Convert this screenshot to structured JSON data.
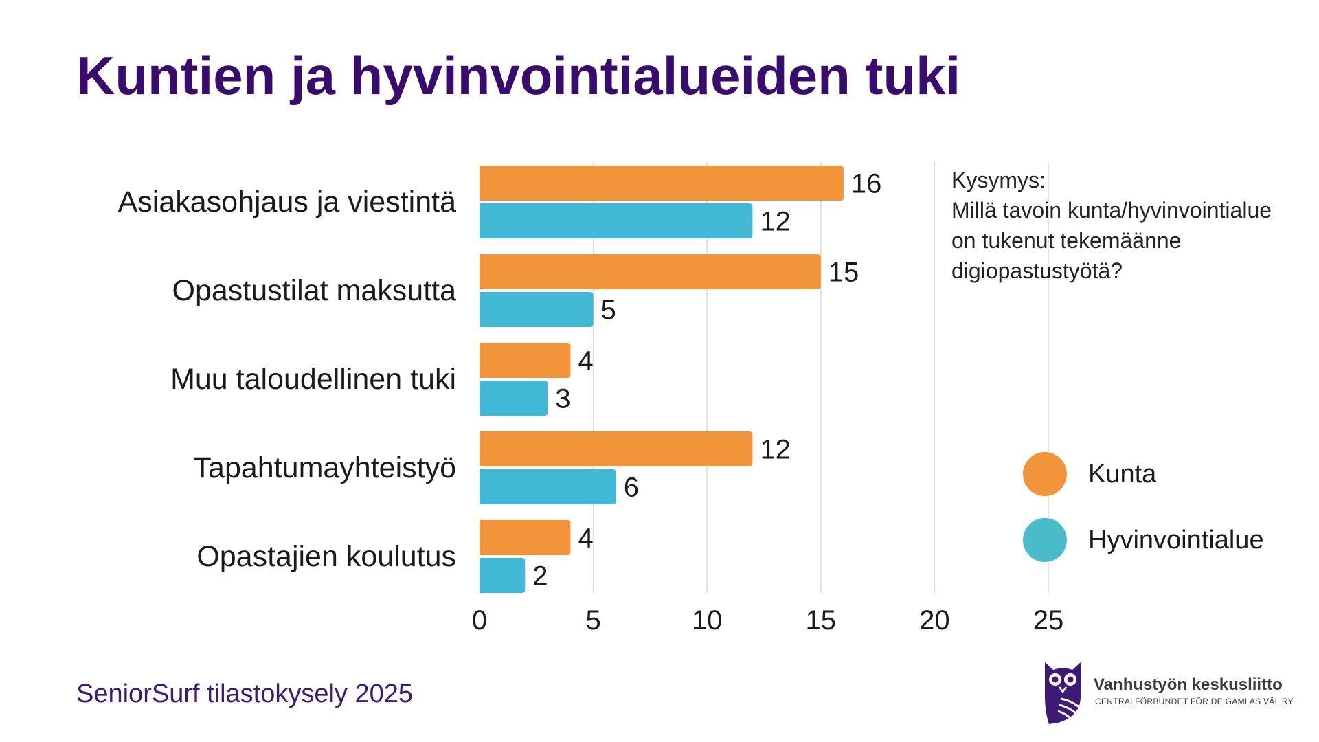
{
  "title": "Kuntien ja hyvinvointialueiden tuki",
  "question": [
    "Kysymys:",
    "Millä tavoin kunta/hyvinvointialue",
    "on tukenut tekemäänne",
    "digiopastustyötä?"
  ],
  "footer": "SeniorSurf tilastokysely 2025",
  "logo": {
    "icon": "owl-icon",
    "name": "Vanhustyön keskusliitto",
    "subtitle": "CENTRALFÖRBUNDET FÖR DE GAMLAS VÄL RY"
  },
  "colors": {
    "title": "#3A0B6E",
    "footer": "#3D1A78",
    "logo": "#3D1A78",
    "grid": "#DDDDDD",
    "text": "#1A1A1A"
  },
  "chart_data": {
    "type": "bar",
    "orientation": "horizontal",
    "categories": [
      "Asiakasohjaus ja viestintä",
      "Opastustilat maksutta",
      "Muu taloudellinen tuki",
      "Tapahtumayhteistyö",
      "Opastajien koulutus"
    ],
    "series": [
      {
        "name": "Kunta",
        "color": "#F2953A",
        "legend_color": "#F2953A",
        "values": [
          16,
          15,
          4,
          12,
          4
        ]
      },
      {
        "name": "Hyvinvointialue",
        "color": "#41B8D6",
        "legend_color": "#4ABCC9",
        "values": [
          12,
          5,
          3,
          6,
          2
        ]
      }
    ],
    "xlim": [
      0,
      25
    ],
    "xticks": [
      0,
      5,
      10,
      15,
      20,
      25
    ],
    "grid": true,
    "data_labels": true,
    "legend_position": "right"
  }
}
